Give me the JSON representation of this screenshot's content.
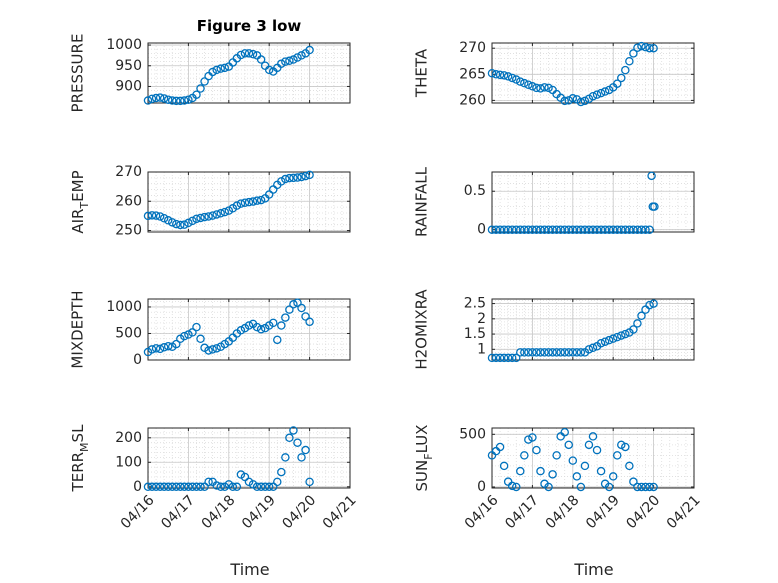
{
  "figure": {
    "title": "Figure 3 low",
    "marker_color": "#0072BD",
    "x_tick_labels": [
      "04/16",
      "04/17",
      "04/18",
      "04/19",
      "04/20",
      "04/21"
    ],
    "x_label": "Time"
  },
  "chart_data": [
    {
      "type": "scatter",
      "ylabel": "PRESSURE",
      "xlim": [
        0,
        5
      ],
      "ylim": [
        860,
        1005
      ],
      "yticks": [
        900,
        950,
        1000
      ],
      "grid": true,
      "x": [
        0.0,
        0.1,
        0.2,
        0.3,
        0.4,
        0.5,
        0.6,
        0.7,
        0.8,
        0.9,
        1.0,
        1.1,
        1.2,
        1.3,
        1.4,
        1.5,
        1.6,
        1.7,
        1.8,
        1.9,
        2.0,
        2.1,
        2.2,
        2.3,
        2.4,
        2.5,
        2.6,
        2.7,
        2.8,
        2.9,
        3.0,
        3.1,
        3.2,
        3.3,
        3.4,
        3.5,
        3.6,
        3.7,
        3.8,
        3.9,
        4.0
      ],
      "y": [
        866,
        870,
        872,
        873,
        871,
        868,
        866,
        865,
        865,
        866,
        868,
        872,
        880,
        895,
        912,
        925,
        935,
        940,
        943,
        945,
        948,
        958,
        968,
        976,
        980,
        980,
        978,
        975,
        965,
        950,
        940,
        936,
        945,
        955,
        960,
        962,
        965,
        970,
        975,
        980,
        988
      ]
    },
    {
      "type": "scatter",
      "ylabel": "THETA",
      "xlim": [
        0,
        5
      ],
      "ylim": [
        259.5,
        271
      ],
      "yticks": [
        260,
        265,
        270
      ],
      "grid": true,
      "x": [
        0.0,
        0.1,
        0.2,
        0.3,
        0.4,
        0.5,
        0.6,
        0.7,
        0.8,
        0.9,
        1.0,
        1.1,
        1.2,
        1.3,
        1.4,
        1.5,
        1.6,
        1.7,
        1.8,
        1.9,
        2.0,
        2.1,
        2.2,
        2.3,
        2.4,
        2.5,
        2.6,
        2.7,
        2.8,
        2.9,
        3.0,
        3.1,
        3.2,
        3.3,
        3.4,
        3.5,
        3.6,
        3.7,
        3.8,
        3.9,
        4.0
      ],
      "y": [
        265.2,
        265.0,
        264.9,
        264.8,
        264.6,
        264.3,
        264.0,
        263.6,
        263.3,
        263.0,
        262.7,
        262.4,
        262.3,
        262.5,
        262.4,
        262.0,
        261.2,
        260.5,
        259.9,
        260.0,
        260.4,
        260.2,
        259.7,
        259.9,
        260.3,
        260.8,
        261.1,
        261.4,
        261.7,
        262.0,
        262.5,
        263.2,
        264.3,
        265.8,
        267.5,
        269.0,
        270.1,
        270.4,
        270.2,
        270.0,
        270.0
      ]
    },
    {
      "type": "scatter",
      "ylabel": "AIR_TEMP",
      "xlim": [
        0,
        5
      ],
      "ylim": [
        249.5,
        270
      ],
      "yticks": [
        250,
        260,
        270
      ],
      "grid": true,
      "x": [
        0.0,
        0.1,
        0.2,
        0.3,
        0.4,
        0.5,
        0.6,
        0.7,
        0.8,
        0.9,
        1.0,
        1.1,
        1.2,
        1.3,
        1.4,
        1.5,
        1.6,
        1.7,
        1.8,
        1.9,
        2.0,
        2.1,
        2.2,
        2.3,
        2.4,
        2.5,
        2.6,
        2.7,
        2.8,
        2.9,
        3.0,
        3.1,
        3.2,
        3.3,
        3.4,
        3.5,
        3.6,
        3.7,
        3.8,
        3.9,
        4.0
      ],
      "y": [
        255.0,
        255.2,
        255.1,
        254.8,
        254.2,
        253.5,
        252.8,
        252.2,
        251.9,
        252.0,
        252.6,
        253.3,
        254.0,
        254.3,
        254.6,
        254.8,
        255.1,
        255.5,
        255.9,
        256.3,
        256.8,
        257.6,
        258.5,
        259.2,
        259.5,
        259.7,
        259.9,
        260.2,
        260.4,
        261.0,
        262.3,
        264.0,
        265.6,
        266.8,
        267.6,
        267.9,
        268.0,
        268.1,
        268.3,
        268.6,
        269.0
      ]
    },
    {
      "type": "scatter",
      "ylabel": "RAINFALL",
      "xlim": [
        0,
        5
      ],
      "ylim": [
        -0.03,
        0.75
      ],
      "yticks": [
        0,
        0.5
      ],
      "grid": true,
      "x": [
        0.0,
        0.1,
        0.2,
        0.3,
        0.4,
        0.5,
        0.6,
        0.7,
        0.8,
        0.9,
        1.0,
        1.1,
        1.2,
        1.3,
        1.4,
        1.5,
        1.6,
        1.7,
        1.8,
        1.9,
        2.0,
        2.1,
        2.2,
        2.3,
        2.4,
        2.5,
        2.6,
        2.7,
        2.8,
        2.9,
        3.0,
        3.1,
        3.2,
        3.3,
        3.4,
        3.5,
        3.6,
        3.7,
        3.8,
        3.9,
        3.95,
        3.98,
        4.02
      ],
      "y": [
        0,
        0,
        0,
        0,
        0,
        0,
        0,
        0,
        0,
        0,
        0,
        0,
        0,
        0,
        0,
        0,
        0,
        0,
        0,
        0,
        0,
        0,
        0,
        0,
        0,
        0,
        0,
        0,
        0,
        0,
        0,
        0,
        0,
        0,
        0,
        0,
        0,
        0,
        0,
        0,
        0.7,
        0.3,
        0.3
      ]
    },
    {
      "type": "scatter",
      "ylabel": "MIXDEPTH",
      "xlim": [
        0,
        5
      ],
      "ylim": [
        0,
        1150
      ],
      "yticks": [
        0,
        500,
        1000
      ],
      "grid": true,
      "x": [
        0.0,
        0.1,
        0.2,
        0.3,
        0.4,
        0.5,
        0.6,
        0.7,
        0.8,
        0.9,
        1.0,
        1.1,
        1.2,
        1.3,
        1.4,
        1.5,
        1.6,
        1.7,
        1.8,
        1.9,
        2.0,
        2.1,
        2.2,
        2.3,
        2.4,
        2.5,
        2.6,
        2.7,
        2.8,
        2.9,
        3.0,
        3.1,
        3.2,
        3.3,
        3.4,
        3.5,
        3.6,
        3.7,
        3.8,
        3.9,
        4.0
      ],
      "y": [
        150,
        200,
        220,
        210,
        240,
        260,
        250,
        300,
        400,
        450,
        480,
        520,
        620,
        400,
        230,
        180,
        200,
        220,
        250,
        300,
        350,
        420,
        500,
        560,
        600,
        650,
        680,
        620,
        580,
        600,
        650,
        700,
        380,
        650,
        800,
        950,
        1050,
        1080,
        980,
        820,
        720
      ]
    },
    {
      "type": "scatter",
      "ylabel": "H2OMIXRA",
      "xlim": [
        0,
        5
      ],
      "ylim": [
        0.65,
        2.65
      ],
      "yticks": [
        1,
        1.5,
        2,
        2.5
      ],
      "grid": true,
      "x": [
        0.0,
        0.1,
        0.2,
        0.3,
        0.4,
        0.5,
        0.6,
        0.7,
        0.8,
        0.9,
        1.0,
        1.1,
        1.2,
        1.3,
        1.4,
        1.5,
        1.6,
        1.7,
        1.8,
        1.9,
        2.0,
        2.1,
        2.2,
        2.3,
        2.4,
        2.5,
        2.6,
        2.7,
        2.8,
        2.9,
        3.0,
        3.1,
        3.2,
        3.3,
        3.4,
        3.5,
        3.6,
        3.7,
        3.8,
        3.9,
        4.0
      ],
      "y": [
        0.72,
        0.72,
        0.72,
        0.72,
        0.72,
        0.72,
        0.72,
        0.9,
        0.9,
        0.9,
        0.9,
        0.9,
        0.9,
        0.9,
        0.9,
        0.9,
        0.9,
        0.9,
        0.9,
        0.9,
        0.9,
        0.9,
        0.9,
        0.9,
        1.0,
        1.05,
        1.1,
        1.2,
        1.25,
        1.3,
        1.35,
        1.4,
        1.45,
        1.5,
        1.55,
        1.65,
        1.85,
        2.1,
        2.3,
        2.45,
        2.5
      ]
    },
    {
      "type": "scatter",
      "ylabel": "TERR_MSL",
      "xlim": [
        0,
        5
      ],
      "ylim": [
        -5,
        240
      ],
      "yticks": [
        0,
        100,
        200
      ],
      "grid": true,
      "x": [
        0.0,
        0.1,
        0.2,
        0.3,
        0.4,
        0.5,
        0.6,
        0.7,
        0.8,
        0.9,
        1.0,
        1.1,
        1.2,
        1.3,
        1.4,
        1.5,
        1.6,
        1.7,
        1.8,
        1.9,
        2.0,
        2.1,
        2.2,
        2.3,
        2.4,
        2.5,
        2.6,
        2.7,
        2.8,
        2.9,
        3.0,
        3.1,
        3.2,
        3.3,
        3.4,
        3.5,
        3.6,
        3.7,
        3.8,
        3.9,
        4.0
      ],
      "y": [
        0,
        0,
        0,
        0,
        0,
        0,
        0,
        0,
        0,
        0,
        0,
        0,
        0,
        0,
        0,
        20,
        20,
        5,
        0,
        0,
        10,
        0,
        0,
        50,
        40,
        20,
        10,
        0,
        0,
        0,
        0,
        0,
        20,
        60,
        120,
        200,
        230,
        180,
        120,
        150,
        20
      ]
    },
    {
      "type": "scatter",
      "ylabel": "SUN_FLUX",
      "xlim": [
        0,
        5
      ],
      "ylim": [
        -10,
        560
      ],
      "yticks": [
        0,
        500
      ],
      "grid": true,
      "x": [
        0.0,
        0.1,
        0.2,
        0.3,
        0.4,
        0.5,
        0.6,
        0.7,
        0.8,
        0.9,
        1.0,
        1.1,
        1.2,
        1.3,
        1.4,
        1.5,
        1.6,
        1.7,
        1.8,
        1.9,
        2.0,
        2.1,
        2.2,
        2.3,
        2.4,
        2.5,
        2.6,
        2.7,
        2.8,
        2.9,
        3.0,
        3.1,
        3.2,
        3.3,
        3.4,
        3.5,
        3.6,
        3.7,
        3.8,
        3.9,
        4.0
      ],
      "y": [
        300,
        340,
        380,
        200,
        50,
        10,
        0,
        150,
        300,
        450,
        470,
        350,
        150,
        30,
        0,
        120,
        300,
        480,
        520,
        400,
        250,
        100,
        0,
        200,
        400,
        480,
        350,
        150,
        30,
        0,
        100,
        300,
        400,
        380,
        200,
        50,
        0,
        0,
        0,
        0,
        0
      ]
    }
  ]
}
